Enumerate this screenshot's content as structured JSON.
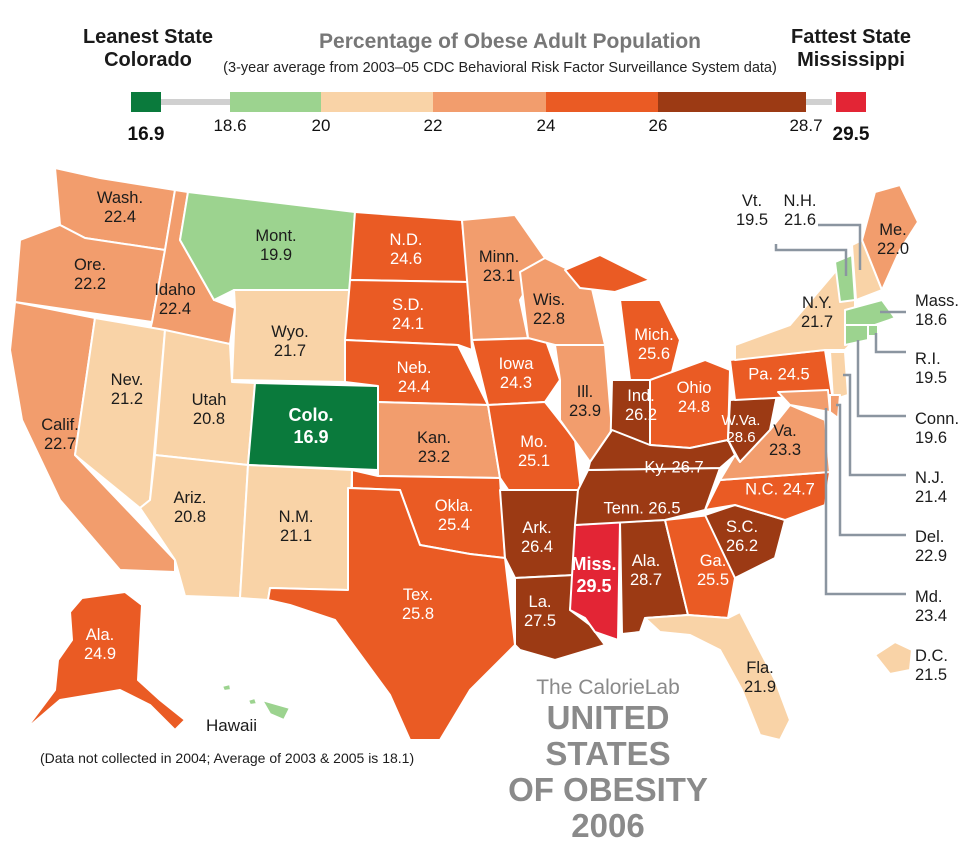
{
  "header": {
    "left": "Leanest State\nColorado",
    "right": "Fattest State\nMississippi",
    "title": "Percentage of Obese Adult Population",
    "subtitle": "(3-year average from 2003–05 CDC Behavioral Risk Factor Surveillance System data)"
  },
  "legend": {
    "ticks": [
      "16.9",
      "18.6",
      "20",
      "22",
      "24",
      "26",
      "28.7",
      "29.5"
    ],
    "colors": [
      "#0a7a3c",
      "#9cd38f",
      "#f9d3a7",
      "#f29d6d",
      "#ea5b24",
      "#9c3a14",
      "#e32535"
    ]
  },
  "colors": {
    "green": "#0a7a3c",
    "light_green": "#9cd38f",
    "tan": "#f9d3a7",
    "salmon": "#f29d6d",
    "orange": "#ea5b24",
    "brown": "#9c3a14",
    "red": "#e32535",
    "gray_line": "#8b95a0"
  },
  "states": {
    "wash": "Wash.\n22.4",
    "ore": "Ore.\n22.2",
    "idaho": "Idaho\n22.4",
    "mont": "Mont.\n19.9",
    "wyo": "Wyo.\n21.7",
    "nev": "Nev.\n21.2",
    "utah": "Utah\n20.8",
    "colo": "Colo.\n16.9",
    "calif": "Calif.\n22.7",
    "ariz": "Ariz.\n20.8",
    "nm": "N.M.\n21.1",
    "nd": "N.D.\n24.6",
    "sd": "S.D.\n24.1",
    "neb": "Neb.\n24.4",
    "kan": "Kan.\n23.2",
    "okla": "Okla.\n25.4",
    "tex": "Tex.\n25.8",
    "minn": "Minn.\n23.1",
    "iowa": "Iowa\n24.3",
    "mo": "Mo.\n25.1",
    "ark": "Ark.\n26.4",
    "la": "La.\n27.5",
    "wis": "Wis.\n22.8",
    "ill": "Ill.\n23.9",
    "mich": "Mich.\n25.6",
    "ind": "Ind.\n26.2",
    "ohio": "Ohio\n24.8",
    "ky": "Ky. 26.7",
    "tenn": "Tenn. 26.5",
    "miss": "Miss.\n29.5",
    "ala": "Ala.\n28.7",
    "ga": "Ga.\n25.5",
    "fla": "Fla.\n21.9",
    "sc": "S.C.\n26.2",
    "nc": "N.C. 24.7",
    "va": "Va.\n23.3",
    "wva": "W.Va.\n28.6",
    "pa": "Pa. 24.5",
    "ny": "N.Y.\n21.7",
    "me": "Me.\n22.0",
    "ak": "Ala.\n24.9"
  },
  "callouts": {
    "vt": "Vt.\n19.5",
    "nh": "N.H.\n21.6",
    "mass": "Mass.\n18.6",
    "ri": "R.I.\n19.5",
    "conn": "Conn.\n19.6",
    "nj": "N.J.\n21.4",
    "del": "Del.\n22.9",
    "md": "Md.\n23.4",
    "dc": "D.C.\n21.5"
  },
  "hawaii": {
    "label": "Hawaii",
    "note": "(Data not collected in 2004; Average of 2003 & 2005 is 18.1)"
  },
  "branding": {
    "line1": "The CalorieLab",
    "line2": "UNITED STATES\nOF OBESITY 2006"
  }
}
